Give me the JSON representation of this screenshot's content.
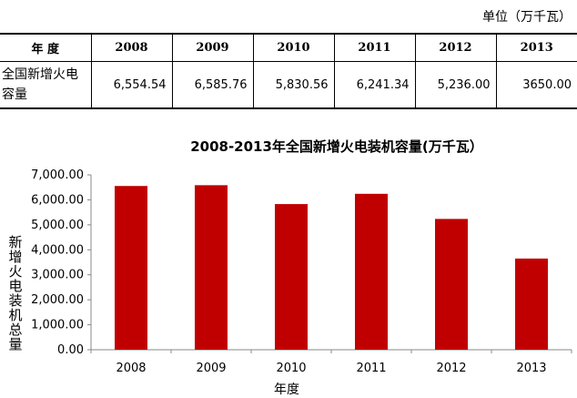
{
  "unit_label": "单位（万千瓦）",
  "table": {
    "header_label": "年  度",
    "row_label": "全国新增火电容量",
    "years": [
      "2008",
      "2009",
      "2010",
      "2011",
      "2012",
      "2013"
    ],
    "values": [
      "6,554.54",
      "6,585.76",
      "5,830.56",
      "6,241.34",
      "5,236.00",
      "3650.00"
    ]
  },
  "chart_data": {
    "type": "bar",
    "title": "2008-2013年全国新增火电装机容量(万千瓦）",
    "xlabel": "年度",
    "ylabel": "新增火电装机总量",
    "categories": [
      "2008",
      "2009",
      "2010",
      "2011",
      "2012",
      "2013"
    ],
    "values": [
      6554.54,
      6585.76,
      5830.56,
      6241.34,
      5236.0,
      3650.0
    ],
    "ylim": [
      0,
      7000
    ],
    "yticks": [
      "0.00",
      "1,000.00",
      "2,000.00",
      "3,000.00",
      "4,000.00",
      "5,000.00",
      "6,000.00",
      "7,000.00"
    ],
    "grid": false,
    "bar_color": "#c00000"
  }
}
